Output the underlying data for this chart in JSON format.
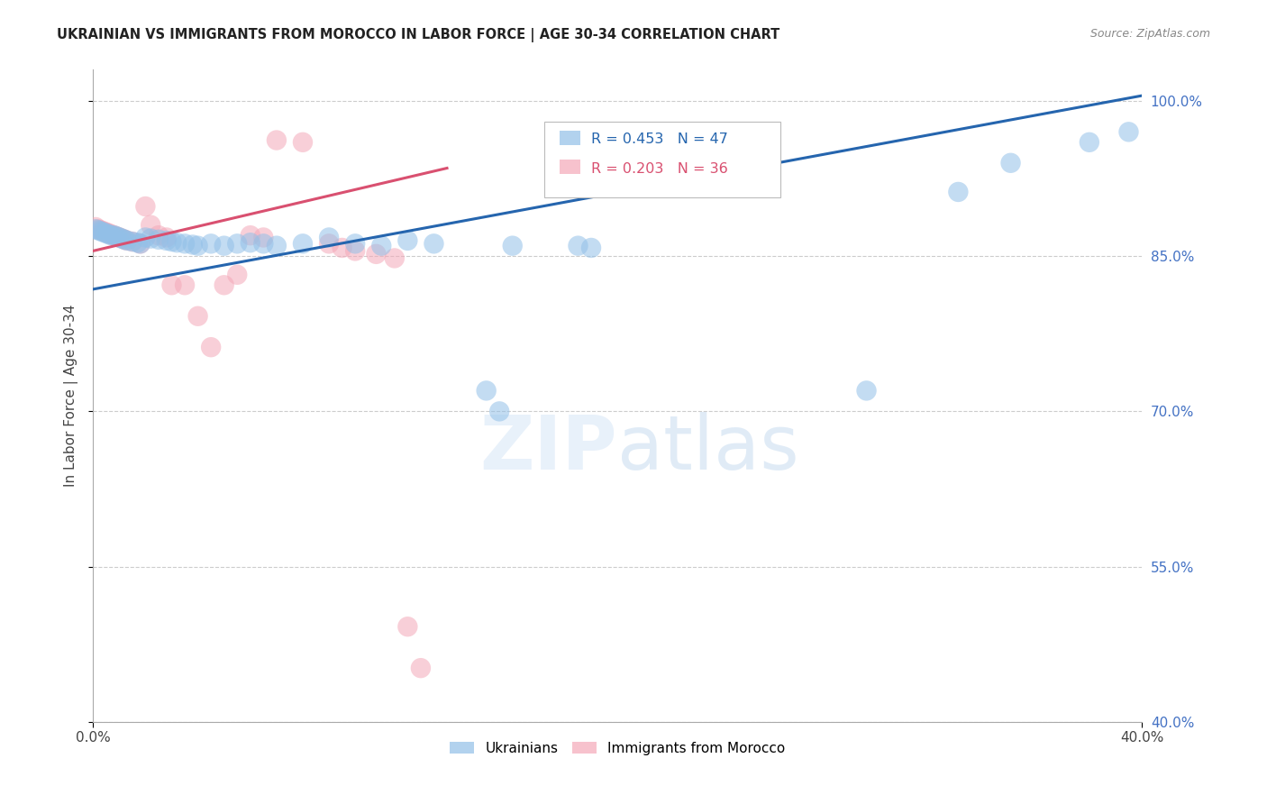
{
  "title": "UKRAINIAN VS IMMIGRANTS FROM MOROCCO IN LABOR FORCE | AGE 30-34 CORRELATION CHART",
  "source": "Source: ZipAtlas.com",
  "ylabel": "In Labor Force | Age 30-34",
  "xlim": [
    0.0,
    0.4
  ],
  "ylim": [
    0.4,
    1.03
  ],
  "yticks": [
    0.4,
    0.55,
    0.7,
    0.85,
    1.0
  ],
  "ytick_labels": [
    "40.0%",
    "55.0%",
    "70.0%",
    "85.0%",
    "100.0%"
  ],
  "blue_label": "Ukrainians",
  "pink_label": "Immigrants from Morocco",
  "blue_R": 0.453,
  "blue_N": 47,
  "pink_R": 0.203,
  "pink_N": 36,
  "blue_color": "#92c0e8",
  "pink_color": "#f4a8b8",
  "blue_line_color": "#2565ae",
  "pink_line_color": "#d95070",
  "background_color": "#ffffff",
  "grid_color": "#cccccc",
  "title_color": "#222222",
  "axis_label_color": "#444444",
  "right_tick_color": "#4472c4",
  "blue_x": [
    0.001,
    0.002,
    0.003,
    0.004,
    0.005,
    0.006,
    0.007,
    0.008,
    0.009,
    0.01,
    0.011,
    0.012,
    0.013,
    0.015,
    0.017,
    0.018,
    0.02,
    0.022,
    0.025,
    0.028,
    0.03,
    0.032,
    0.035,
    0.038,
    0.04,
    0.045,
    0.05,
    0.055,
    0.06,
    0.065,
    0.07,
    0.08,
    0.09,
    0.1,
    0.11,
    0.12,
    0.13,
    0.15,
    0.155,
    0.16,
    0.185,
    0.19,
    0.295,
    0.33,
    0.35,
    0.38,
    0.395
  ],
  "blue_y": [
    0.876,
    0.875,
    0.874,
    0.873,
    0.872,
    0.871,
    0.87,
    0.87,
    0.869,
    0.868,
    0.867,
    0.866,
    0.865,
    0.864,
    0.863,
    0.862,
    0.868,
    0.867,
    0.866,
    0.865,
    0.864,
    0.863,
    0.862,
    0.861,
    0.86,
    0.862,
    0.86,
    0.862,
    0.863,
    0.862,
    0.86,
    0.862,
    0.868,
    0.862,
    0.86,
    0.865,
    0.862,
    0.72,
    0.7,
    0.86,
    0.86,
    0.858,
    0.72,
    0.912,
    0.94,
    0.96,
    0.97
  ],
  "pink_x": [
    0.001,
    0.002,
    0.003,
    0.004,
    0.005,
    0.006,
    0.007,
    0.008,
    0.009,
    0.01,
    0.011,
    0.012,
    0.013,
    0.015,
    0.018,
    0.02,
    0.022,
    0.025,
    0.028,
    0.03,
    0.035,
    0.04,
    0.045,
    0.05,
    0.055,
    0.06,
    0.065,
    0.07,
    0.08,
    0.09,
    0.095,
    0.1,
    0.108,
    0.115,
    0.12,
    0.125
  ],
  "pink_y": [
    0.878,
    0.876,
    0.875,
    0.874,
    0.873,
    0.872,
    0.871,
    0.87,
    0.869,
    0.868,
    0.867,
    0.866,
    0.865,
    0.864,
    0.862,
    0.898,
    0.88,
    0.87,
    0.868,
    0.822,
    0.822,
    0.792,
    0.762,
    0.822,
    0.832,
    0.87,
    0.868,
    0.962,
    0.96,
    0.862,
    0.858,
    0.855,
    0.852,
    0.848,
    0.492,
    0.452
  ],
  "blue_line_x": [
    0.0,
    0.4
  ],
  "blue_line_y": [
    0.818,
    1.005
  ],
  "pink_line_x": [
    0.0,
    0.135
  ],
  "pink_line_y": [
    0.855,
    0.935
  ]
}
